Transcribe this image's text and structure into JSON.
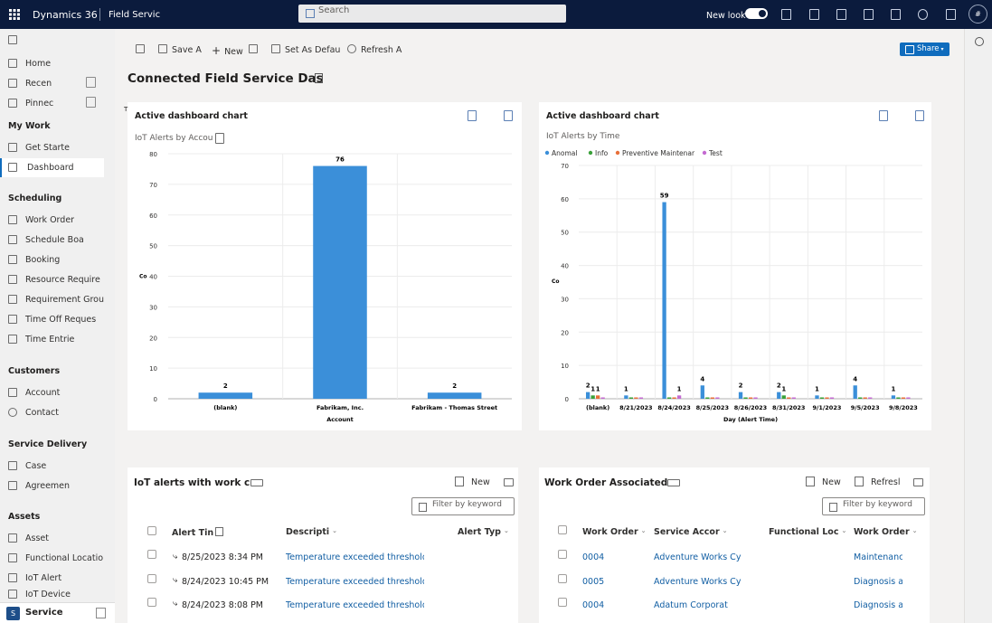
{
  "topbar": {
    "app_name": "Dynamics 36",
    "area_name": "Field Servic",
    "search_placeholder": "Search",
    "new_look_label": "New look",
    "avatar_initials": "#"
  },
  "sidebar": {
    "top_items": [
      {
        "label": "Home"
      },
      {
        "label": "Recen"
      },
      {
        "label": "Pinnec"
      }
    ],
    "groups": [
      {
        "heading": "My Work",
        "items": [
          {
            "label": "Get Starte"
          },
          {
            "label": "Dashboard"
          }
        ]
      },
      {
        "heading": "Scheduling",
        "items": [
          {
            "label": "Work Order"
          },
          {
            "label": "Schedule Boa"
          },
          {
            "label": "Booking"
          },
          {
            "label": "Resource Require"
          },
          {
            "label": "Requirement Grou"
          },
          {
            "label": "Time Off Reques"
          },
          {
            "label": "Time Entrie"
          }
        ]
      },
      {
        "heading": "Customers",
        "items": [
          {
            "label": "Account"
          },
          {
            "label": "Contact"
          }
        ]
      },
      {
        "heading": "Service Delivery",
        "items": [
          {
            "label": "Case"
          },
          {
            "label": "Agreemen"
          }
        ]
      },
      {
        "heading": "Assets",
        "items": [
          {
            "label": "Asset"
          },
          {
            "label": "Functional Locatio"
          },
          {
            "label": "IoT Alert"
          },
          {
            "label": "IoT Device"
          }
        ]
      }
    ],
    "area_switcher": {
      "badge": "S",
      "label": "Service"
    }
  },
  "command_bar": {
    "save_as": "Save A",
    "new": "New",
    "set_as_default": "Set As Defau",
    "refresh_all": "Refresh A",
    "share": "Share"
  },
  "dashboard": {
    "title": "Connected Field Service Das"
  },
  "chart_left": {
    "panel_title": "Active dashboard chart",
    "subtitle": "IoT Alerts by Accou"
  },
  "chart_right": {
    "panel_title": "Active dashboard chart",
    "subtitle": "IoT Alerts by Time"
  },
  "chart_data": [
    {
      "type": "bar",
      "title": "IoT Alerts by Accou",
      "xlabel": "Account",
      "ylabel": "Co",
      "categories": [
        "(blank)",
        "Fabrikam, Inc.",
        "Fabrikam - Thomas Street"
      ],
      "values": [
        2,
        76,
        2
      ],
      "ylim": [
        0,
        80
      ],
      "yticks": [
        0,
        10,
        20,
        30,
        40,
        50,
        60,
        70,
        80
      ],
      "color": "#3b8fd9"
    },
    {
      "type": "bar",
      "title": "IoT Alerts by Time",
      "xlabel": "Day (Alert Time)",
      "ylabel": "Co",
      "categories": [
        "(blank)",
        "8/21/2023",
        "8/24/2023",
        "8/25/2023",
        "8/26/2023",
        "8/31/2023",
        "9/1/2023",
        "9/5/2023",
        "9/8/2023"
      ],
      "series": [
        {
          "name": "Anomal",
          "color": "#3b8fd9",
          "values": [
            2,
            1,
            59,
            4,
            2,
            2,
            1,
            4,
            1
          ]
        },
        {
          "name": "Info",
          "color": "#3aa13a",
          "values": [
            1,
            0,
            0,
            0,
            0,
            1,
            0,
            0,
            0
          ]
        },
        {
          "name": "Preventive Maintenar",
          "color": "#e8703a",
          "values": [
            1,
            0,
            0,
            0,
            0,
            0,
            0,
            0,
            0
          ]
        },
        {
          "name": "Test",
          "color": "#c46ad1",
          "values": [
            0,
            0,
            1,
            0,
            0,
            0,
            0,
            0,
            0
          ]
        }
      ],
      "data_labels": [
        [
          "2",
          "1",
          "1"
        ],
        [
          "1"
        ],
        [
          "59",
          "1"
        ],
        [
          "4"
        ],
        [
          "2"
        ],
        [
          "2",
          "1"
        ],
        [
          "1"
        ],
        [
          "4"
        ],
        [
          "1"
        ]
      ],
      "ylim": [
        0,
        70
      ],
      "yticks": [
        0,
        10,
        20,
        30,
        40,
        50,
        60,
        70
      ]
    }
  ],
  "grid_left": {
    "title": "IoT alerts with work c",
    "new_label": "New",
    "filter_placeholder": "Filter by keyword",
    "columns": [
      "Alert Tin",
      "Descripti",
      "Alert Typ"
    ],
    "rows": [
      {
        "time": "8/25/2023 8:34 PM",
        "description": "Temperature exceeded threshold l"
      },
      {
        "time": "8/24/2023 10:45 PM",
        "description": "Temperature exceeded threshold l"
      },
      {
        "time": "8/24/2023 8:08 PM",
        "description": "Temperature exceeded threshold l"
      }
    ]
  },
  "grid_right": {
    "title": "Work Order Associated",
    "new_label": "New",
    "refresh_label": "Refresl",
    "filter_placeholder": "Filter by keyword",
    "columns": [
      "Work Order",
      "Service Accor",
      "Functional Loc",
      "Work Order"
    ],
    "rows": [
      {
        "number": "0004",
        "account": "Adventure Works Cyc",
        "type": "Maintenanc"
      },
      {
        "number": "0005",
        "account": "Adventure Works Cyc",
        "type": "Diagnosis a"
      },
      {
        "number": "0004",
        "account": "Adatum Corporati",
        "type": "Diagnosis a"
      }
    ]
  }
}
